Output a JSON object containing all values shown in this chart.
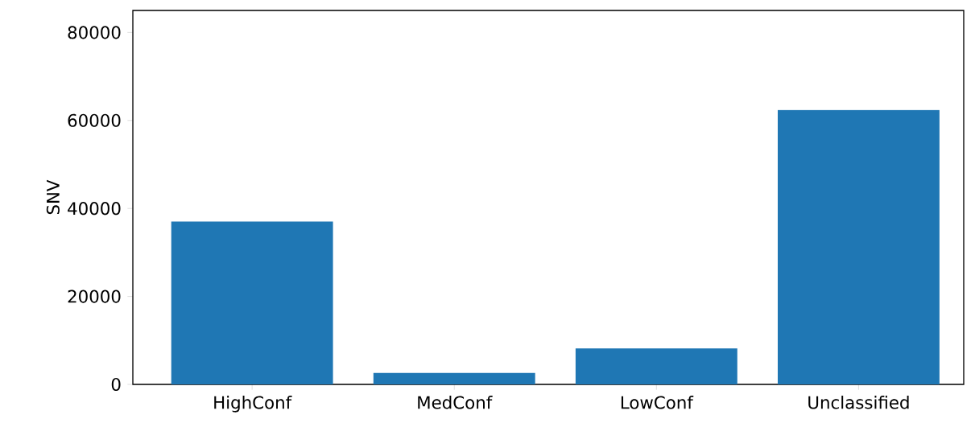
{
  "chart_data": {
    "type": "bar",
    "ylabel": "SNV",
    "categories": [
      "HighConf",
      "MedConf",
      "LowConf",
      "Unclassified"
    ],
    "values": [
      37000,
      2600,
      8200,
      62400
    ],
    "color": "#1f77b4",
    "ylim": [
      0,
      85000
    ],
    "yticks": [
      0,
      20000,
      40000,
      60000,
      80000
    ],
    "grid": false
  }
}
